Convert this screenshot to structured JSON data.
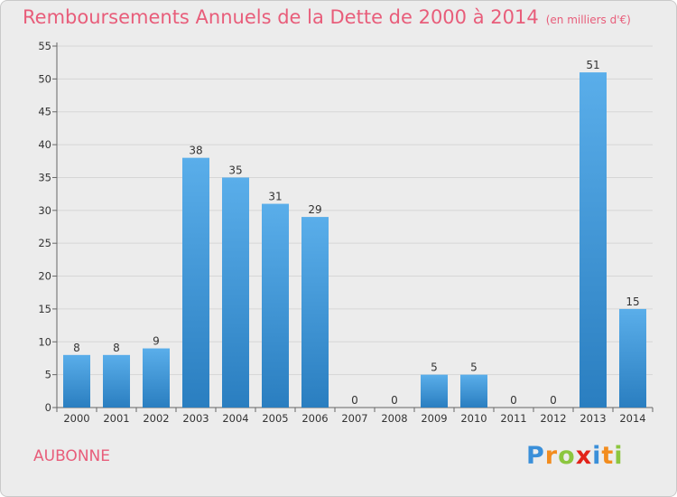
{
  "header": {
    "title": "Remboursements Annuels de la Dette de 2000 à 2014",
    "unit": "(en milliers d'€)"
  },
  "commune": "AUBONNE",
  "brand": {
    "letters": [
      "P",
      "r",
      "o",
      "x",
      "i",
      "t",
      "i"
    ],
    "colors": [
      "#3a8fd9",
      "#f28c1e",
      "#8cc63f",
      "#e2231a",
      "#3a8fd9",
      "#f28c1e",
      "#8cc63f"
    ]
  },
  "colors": {
    "bar_top": "#5aaeea",
    "bar_bottom": "#2a7ec0",
    "title": "#e85d7a",
    "grid": "#d6d6d6"
  },
  "chart_data": {
    "type": "bar",
    "title": "Remboursements Annuels de la Dette de 2000 à 2014",
    "subtitle": "(en milliers d'€)",
    "categories": [
      "2000",
      "2001",
      "2002",
      "2003",
      "2004",
      "2005",
      "2006",
      "2007",
      "2008",
      "2009",
      "2010",
      "2011",
      "2012",
      "2013",
      "2014"
    ],
    "values": [
      8,
      8,
      9,
      38,
      35,
      31,
      29,
      0,
      0,
      5,
      5,
      0,
      0,
      51,
      15
    ],
    "ylim": [
      0,
      55
    ],
    "yticks": [
      0,
      5,
      10,
      15,
      20,
      25,
      30,
      35,
      40,
      45,
      50,
      55
    ],
    "grid": true,
    "xlabel": "",
    "ylabel": ""
  }
}
